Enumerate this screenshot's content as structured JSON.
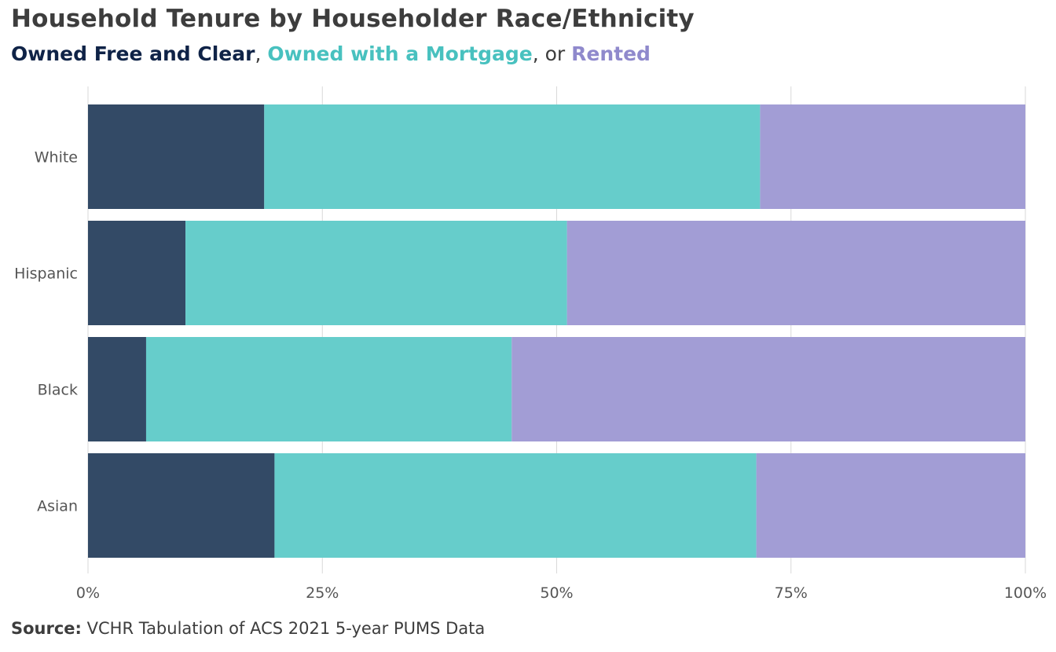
{
  "title": "Household Tenure by Householder Race/Ethnicity",
  "subtitle": {
    "owned_free": "Owned Free and Clear",
    "sep1": ", ",
    "owned_mortgage": "Owned with a Mortgage",
    "sep2": ", or ",
    "rented": "Rented"
  },
  "source": {
    "label": "Source:",
    "text": " VCHR Tabulation of ACS 2021 5-year PUMS Data"
  },
  "colors": {
    "owned_free": "#334a66",
    "owned_mortgage": "#66cdcb",
    "rented": "#a29dd5",
    "owned_free_text": "#0f2347",
    "owned_mortgage_text": "#48c1bf",
    "rented_text": "#8f89cc",
    "grid": "#d9d9d9"
  },
  "chart_data": {
    "type": "bar",
    "orientation": "horizontal",
    "stacked": true,
    "categories": [
      "White",
      "Hispanic",
      "Black",
      "Asian"
    ],
    "series": [
      {
        "name": "Owned Free and Clear",
        "values": [
          18.8,
          10.4,
          6.2,
          19.9
        ]
      },
      {
        "name": "Owned with a Mortgage",
        "values": [
          52.9,
          40.7,
          39.0,
          51.4
        ]
      },
      {
        "name": "Rented",
        "values": [
          28.3,
          48.9,
          54.8,
          28.7
        ]
      }
    ],
    "xlim": [
      0,
      100
    ],
    "x_ticks": [
      {
        "value": 0,
        "label": "0%"
      },
      {
        "value": 25,
        "label": "25%"
      },
      {
        "value": 50,
        "label": "50%"
      },
      {
        "value": 75,
        "label": "75%"
      },
      {
        "value": 100,
        "label": "100%"
      }
    ],
    "grid": "vertical",
    "legend": "subtitle"
  }
}
